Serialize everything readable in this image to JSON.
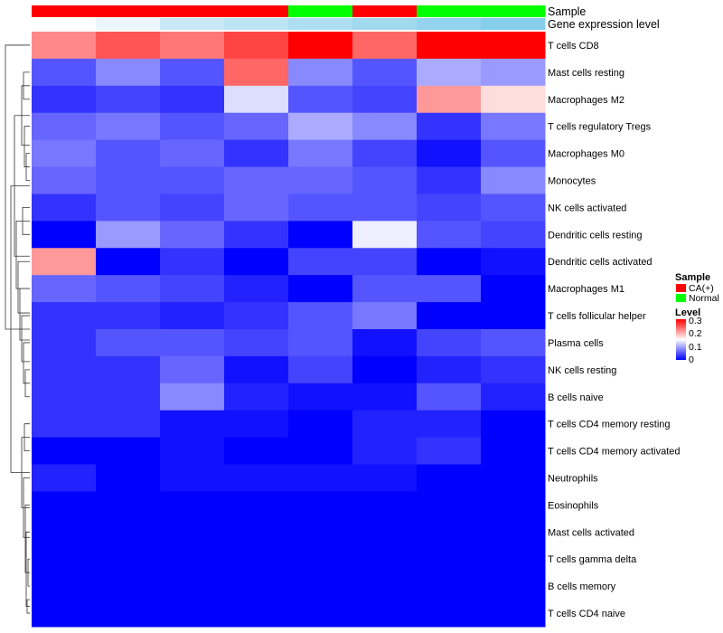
{
  "chart_data": {
    "type": "heatmap",
    "annotation_tracks": {
      "sample_label": "Sample",
      "sample": [
        "CA(+)",
        "CA(+)",
        "CA(+)",
        "CA(+)",
        "Normal",
        "CA(+)",
        "Normal",
        "Normal"
      ],
      "gene_label": "Gene expression level",
      "gene": [
        0.0,
        0.03,
        0.08,
        0.1,
        0.12,
        0.14,
        0.16,
        0.18
      ]
    },
    "rows": [
      "T cells CD8",
      "Mast cells resting",
      "Macrophages M2",
      "T cells regulatory  Tregs",
      "Macrophages M0",
      "Monocytes",
      "NK cells activated",
      "Dendritic cells resting",
      "Dendritic cells activated",
      "Macrophages M1",
      "T cells follicular helper",
      "Plasma cells",
      "NK cells resting",
      "B cells naive",
      "T cells CD4 memory resting",
      "T cells CD4 memory activated",
      "Neutrophils",
      "Eosinophils",
      "Mast cells activated",
      "T cells gamma delta",
      "B cells memory",
      "T cells CD4 naive"
    ],
    "values": [
      [
        0.22,
        0.25,
        0.23,
        0.26,
        0.3,
        0.24,
        0.3,
        0.3
      ],
      [
        0.05,
        0.08,
        0.05,
        0.24,
        0.08,
        0.05,
        0.1,
        0.09
      ],
      [
        0.03,
        0.04,
        0.03,
        0.13,
        0.05,
        0.04,
        0.21,
        0.17
      ],
      [
        0.06,
        0.07,
        0.05,
        0.06,
        0.1,
        0.08,
        0.03,
        0.07
      ],
      [
        0.07,
        0.05,
        0.06,
        0.03,
        0.07,
        0.04,
        0.01,
        0.05
      ],
      [
        0.06,
        0.05,
        0.05,
        0.06,
        0.06,
        0.05,
        0.03,
        0.08
      ],
      [
        0.03,
        0.05,
        0.04,
        0.06,
        0.05,
        0.05,
        0.04,
        0.05
      ],
      [
        0.0,
        0.09,
        0.06,
        0.03,
        0.0,
        0.14,
        0.05,
        0.04
      ],
      [
        0.21,
        0.0,
        0.03,
        0.0,
        0.04,
        0.04,
        0.0,
        0.01
      ],
      [
        0.06,
        0.05,
        0.04,
        0.02,
        0.0,
        0.05,
        0.05,
        0.0
      ],
      [
        0.03,
        0.03,
        0.02,
        0.03,
        0.05,
        0.07,
        0.0,
        0.0
      ],
      [
        0.03,
        0.05,
        0.05,
        0.04,
        0.05,
        0.01,
        0.04,
        0.05
      ],
      [
        0.03,
        0.03,
        0.06,
        0.01,
        0.04,
        0.0,
        0.02,
        0.03
      ],
      [
        0.03,
        0.03,
        0.08,
        0.02,
        0.01,
        0.01,
        0.05,
        0.02
      ],
      [
        0.03,
        0.03,
        0.01,
        0.01,
        0.0,
        0.02,
        0.02,
        0.0
      ],
      [
        0.0,
        0.0,
        0.01,
        0.0,
        0.0,
        0.02,
        0.03,
        0.0
      ],
      [
        0.02,
        0.0,
        0.01,
        0.01,
        0.01,
        0.01,
        0.0,
        0.0
      ],
      [
        0.0,
        0.0,
        0.0,
        0.0,
        0.0,
        0.0,
        0.0,
        0.0
      ],
      [
        0.0,
        0.0,
        0.0,
        0.0,
        0.0,
        0.0,
        0.0,
        0.0
      ],
      [
        0.0,
        0.0,
        0.0,
        0.0,
        0.0,
        0.0,
        0.0,
        0.0
      ],
      [
        0.0,
        0.0,
        0.0,
        0.0,
        0.0,
        0.0,
        0.0,
        0.0
      ],
      [
        0.0,
        0.0,
        0.0,
        0.0,
        0.0,
        0.0,
        0.0,
        0.0
      ]
    ],
    "color_scale": {
      "min": 0,
      "mid": 0.15,
      "max": 0.3,
      "low": "#0000ff",
      "mid_color": "#ffffff",
      "high": "#ff0000"
    },
    "gene_scale": {
      "low": "#ffffff",
      "high": "#87ceeb"
    },
    "legend": {
      "sample_title": "Sample",
      "sample_entries": [
        {
          "label": "CA(+)",
          "color": "#ff0000"
        },
        {
          "label": "Normal",
          "color": "#00ff00"
        }
      ],
      "level_title": "Level",
      "level_ticks": [
        "0.3",
        "0.2",
        "0.1",
        "0"
      ]
    }
  }
}
